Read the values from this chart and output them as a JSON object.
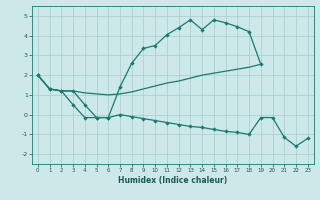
{
  "xlabel": "Humidex (Indice chaleur)",
  "bg_color": "#cce8e8",
  "grid_color": "#aacccc",
  "line_color": "#1a7a6e",
  "xlim": [
    -0.5,
    23.5
  ],
  "ylim": [
    -2.5,
    5.5
  ],
  "yticks": [
    -2,
    -1,
    0,
    1,
    2,
    3,
    4,
    5
  ],
  "xticks": [
    0,
    1,
    2,
    3,
    4,
    5,
    6,
    7,
    8,
    9,
    10,
    11,
    12,
    13,
    14,
    15,
    16,
    17,
    18,
    19,
    20,
    21,
    22,
    23
  ],
  "curve_main": {
    "x": [
      0,
      1,
      2,
      3,
      4,
      5,
      6,
      7,
      8,
      9,
      10,
      11,
      12,
      13,
      14,
      15,
      16,
      17,
      18,
      19
    ],
    "y": [
      2.0,
      1.3,
      1.2,
      1.2,
      0.5,
      -0.15,
      -0.15,
      1.4,
      2.6,
      3.35,
      3.5,
      4.05,
      4.4,
      4.8,
      4.3,
      4.8,
      4.65,
      4.45,
      4.2,
      2.55
    ]
  },
  "curve_linear": {
    "x": [
      0,
      1,
      2,
      3,
      4,
      5,
      6,
      7,
      8,
      9,
      10,
      11,
      12,
      13,
      14,
      15,
      16,
      17,
      18,
      19
    ],
    "y": [
      2.0,
      1.3,
      1.2,
      1.2,
      1.1,
      1.05,
      1.0,
      1.05,
      1.15,
      1.3,
      1.45,
      1.6,
      1.7,
      1.85,
      2.0,
      2.1,
      2.2,
      2.3,
      2.4,
      2.55
    ]
  },
  "curve_lower": {
    "x": [
      0,
      1,
      2,
      3,
      4,
      5,
      6,
      7,
      8,
      9,
      10,
      11,
      12,
      13,
      14,
      15,
      16,
      17,
      18,
      19,
      20,
      21,
      22,
      23
    ],
    "y": [
      2.0,
      1.3,
      1.2,
      0.5,
      -0.15,
      -0.15,
      -0.15,
      0.0,
      -0.1,
      -0.2,
      -0.3,
      -0.4,
      -0.5,
      -0.6,
      -0.65,
      -0.75,
      -0.85,
      -0.9,
      -1.0,
      -0.15,
      -0.15,
      -1.15,
      -1.6,
      -1.2
    ]
  }
}
